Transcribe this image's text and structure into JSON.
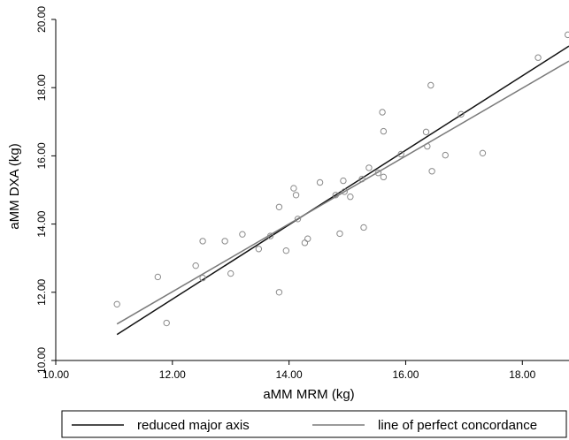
{
  "chart_data": {
    "type": "scatter",
    "xlabel": "aMM MRM (kg)",
    "ylabel": "aMM DXA (kg)",
    "xlim": [
      10,
      18.8
    ],
    "ylim": [
      10,
      20
    ],
    "x_ticks": [
      "10.00",
      "12.00",
      "14.00",
      "16.00",
      "18.00"
    ],
    "y_ticks": [
      "10.00",
      "12.00",
      "14.00",
      "16.00",
      "18.00",
      "20.00"
    ],
    "grid": false,
    "legend_position": "bottom",
    "points": [
      {
        "x": 11.05,
        "y": 11.65
      },
      {
        "x": 11.75,
        "y": 12.45
      },
      {
        "x": 11.9,
        "y": 11.1
      },
      {
        "x": 12.4,
        "y": 12.78
      },
      {
        "x": 12.52,
        "y": 13.5
      },
      {
        "x": 12.52,
        "y": 12.42
      },
      {
        "x": 12.9,
        "y": 13.5
      },
      {
        "x": 13.0,
        "y": 12.55
      },
      {
        "x": 13.2,
        "y": 13.7
      },
      {
        "x": 13.48,
        "y": 13.27
      },
      {
        "x": 13.68,
        "y": 13.65
      },
      {
        "x": 13.83,
        "y": 14.5
      },
      {
        "x": 13.83,
        "y": 12.0
      },
      {
        "x": 13.95,
        "y": 13.22
      },
      {
        "x": 14.08,
        "y": 15.05
      },
      {
        "x": 14.12,
        "y": 14.85
      },
      {
        "x": 14.15,
        "y": 14.15
      },
      {
        "x": 14.27,
        "y": 13.45
      },
      {
        "x": 14.32,
        "y": 13.57
      },
      {
        "x": 14.53,
        "y": 15.22
      },
      {
        "x": 14.8,
        "y": 14.85
      },
      {
        "x": 14.87,
        "y": 13.72
      },
      {
        "x": 14.93,
        "y": 15.27
      },
      {
        "x": 14.95,
        "y": 14.95
      },
      {
        "x": 15.05,
        "y": 14.8
      },
      {
        "x": 15.25,
        "y": 15.32
      },
      {
        "x": 15.28,
        "y": 13.9
      },
      {
        "x": 15.37,
        "y": 15.65
      },
      {
        "x": 15.53,
        "y": 15.5
      },
      {
        "x": 15.6,
        "y": 17.28
      },
      {
        "x": 15.62,
        "y": 16.72
      },
      {
        "x": 15.62,
        "y": 15.38
      },
      {
        "x": 15.92,
        "y": 16.05
      },
      {
        "x": 16.35,
        "y": 16.7
      },
      {
        "x": 16.37,
        "y": 16.28
      },
      {
        "x": 16.43,
        "y": 18.07
      },
      {
        "x": 16.45,
        "y": 15.55
      },
      {
        "x": 16.68,
        "y": 16.02
      },
      {
        "x": 16.95,
        "y": 17.22
      },
      {
        "x": 17.32,
        "y": 16.08
      },
      {
        "x": 18.27,
        "y": 18.88
      },
      {
        "x": 18.78,
        "y": 19.55
      }
    ],
    "series": [
      {
        "name": "reduced major axis",
        "type": "line",
        "color": "#111111",
        "x": [
          11.05,
          18.8
        ],
        "y": [
          10.76,
          19.22
        ]
      },
      {
        "name": "line of perfect concordance",
        "type": "line",
        "color": "#7a7a7a",
        "x": [
          11.05,
          18.8
        ],
        "y": [
          11.07,
          18.78
        ]
      }
    ]
  },
  "style": {
    "point_color": "#8a8a8a",
    "axis_color": "#000000"
  }
}
